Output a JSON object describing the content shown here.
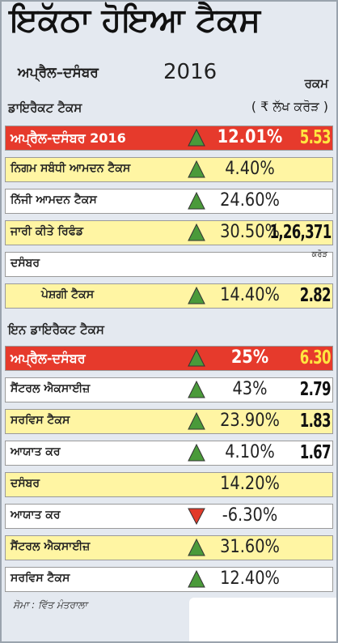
{
  "header": {
    "title": "ਇਕੱਠਾ ਹੋਇਆ ਟੈਕਸ",
    "period": "ਅਪ੍ਰੈਲ–ਦਸੰਬਰ",
    "year": "2016",
    "amount_heading": "ਰਕਮ"
  },
  "sections": [
    {
      "heading": "ਡਾਇਰੈਕਟ ਟੈਕਸ",
      "unit": "( ₹ ਲੱਖ ਕਰੋੜ )",
      "rows": [
        {
          "label": "ਅਪ੍ਰੈਲ-ਦਸੰਬਰ 2016",
          "trend": "up",
          "change": "12.01%",
          "amount": "5.53",
          "fill": "#e63a2c"
        },
        {
          "label": "ਨਿਗਮ ਸਬੰਧੀ ਆਮਦਨ ਟੈਕਸ",
          "trend": "up",
          "change": "4.40%",
          "fill": "#fff5a3"
        },
        {
          "label": "ਨਿੱਜੀ ਆਮਦਨ ਟੈਕਸ",
          "trend": "up",
          "change": "24.60%",
          "fill": "#ffffff"
        },
        {
          "label": "ਜਾਰੀ ਕੀਤੇ ਰਿਫੰਡ",
          "trend": "up",
          "change": "30.50%",
          "amount": "1,26,371",
          "fill": "#fff5a3"
        },
        {
          "label": "ਦਸੰਬਰ",
          "note": "ਕਰੋੜ",
          "fill": "#ffffff"
        },
        {
          "label": "ਪੇਸ਼ਗੀ ਟੈਕਸ",
          "trend": "up",
          "change": "14.40%",
          "amount": "2.82",
          "fill": "#fff5a3"
        }
      ]
    },
    {
      "heading": "ਇਨ ਡਾਇਰੈਕਟ ਟੈਕਸ",
      "rows": [
        {
          "label": "ਅਪ੍ਰੈਲ-ਦਸੰਬਰ",
          "trend": "up",
          "change": "25%",
          "amount": "6.30",
          "fill": "#e63a2c"
        },
        {
          "label": "ਸੈਂਟਰਲ ਐਕਸਾਈਜ਼",
          "trend": "up",
          "change": "43%",
          "amount": "2.79",
          "fill": "#ffffff"
        },
        {
          "label": "ਸਰਵਿਸ ਟੈਕਸ",
          "trend": "up",
          "change": "23.90%",
          "amount": "1.83",
          "fill": "#fff5a3"
        },
        {
          "label": "ਆਯਾਤ ਕਰ",
          "trend": "up",
          "change": "4.10%",
          "amount": "1.67",
          "fill": "#ffffff"
        },
        {
          "label": "ਦਸੰਬਰ",
          "change": "14.20%",
          "fill": "#fff5a3"
        },
        {
          "label": "ਆਯਾਤ ਕਰ",
          "trend": "down",
          "change": "-6.30%",
          "fill": "#ffffff"
        },
        {
          "label": "ਸੈਂਟਰਲ ਐਕਸਾਈਜ਼",
          "trend": "up",
          "change": "31.60%",
          "fill": "#fff5a3"
        },
        {
          "label": "ਸਰਵਿਸ ਟੈਕਸ",
          "trend": "up",
          "change": "12.40%",
          "fill": "#ffffff"
        }
      ]
    }
  ],
  "footer": {
    "source": "ਸੋਮਾ : ਵਿੱਤ ਮੰਤਰਾਲਾ"
  }
}
